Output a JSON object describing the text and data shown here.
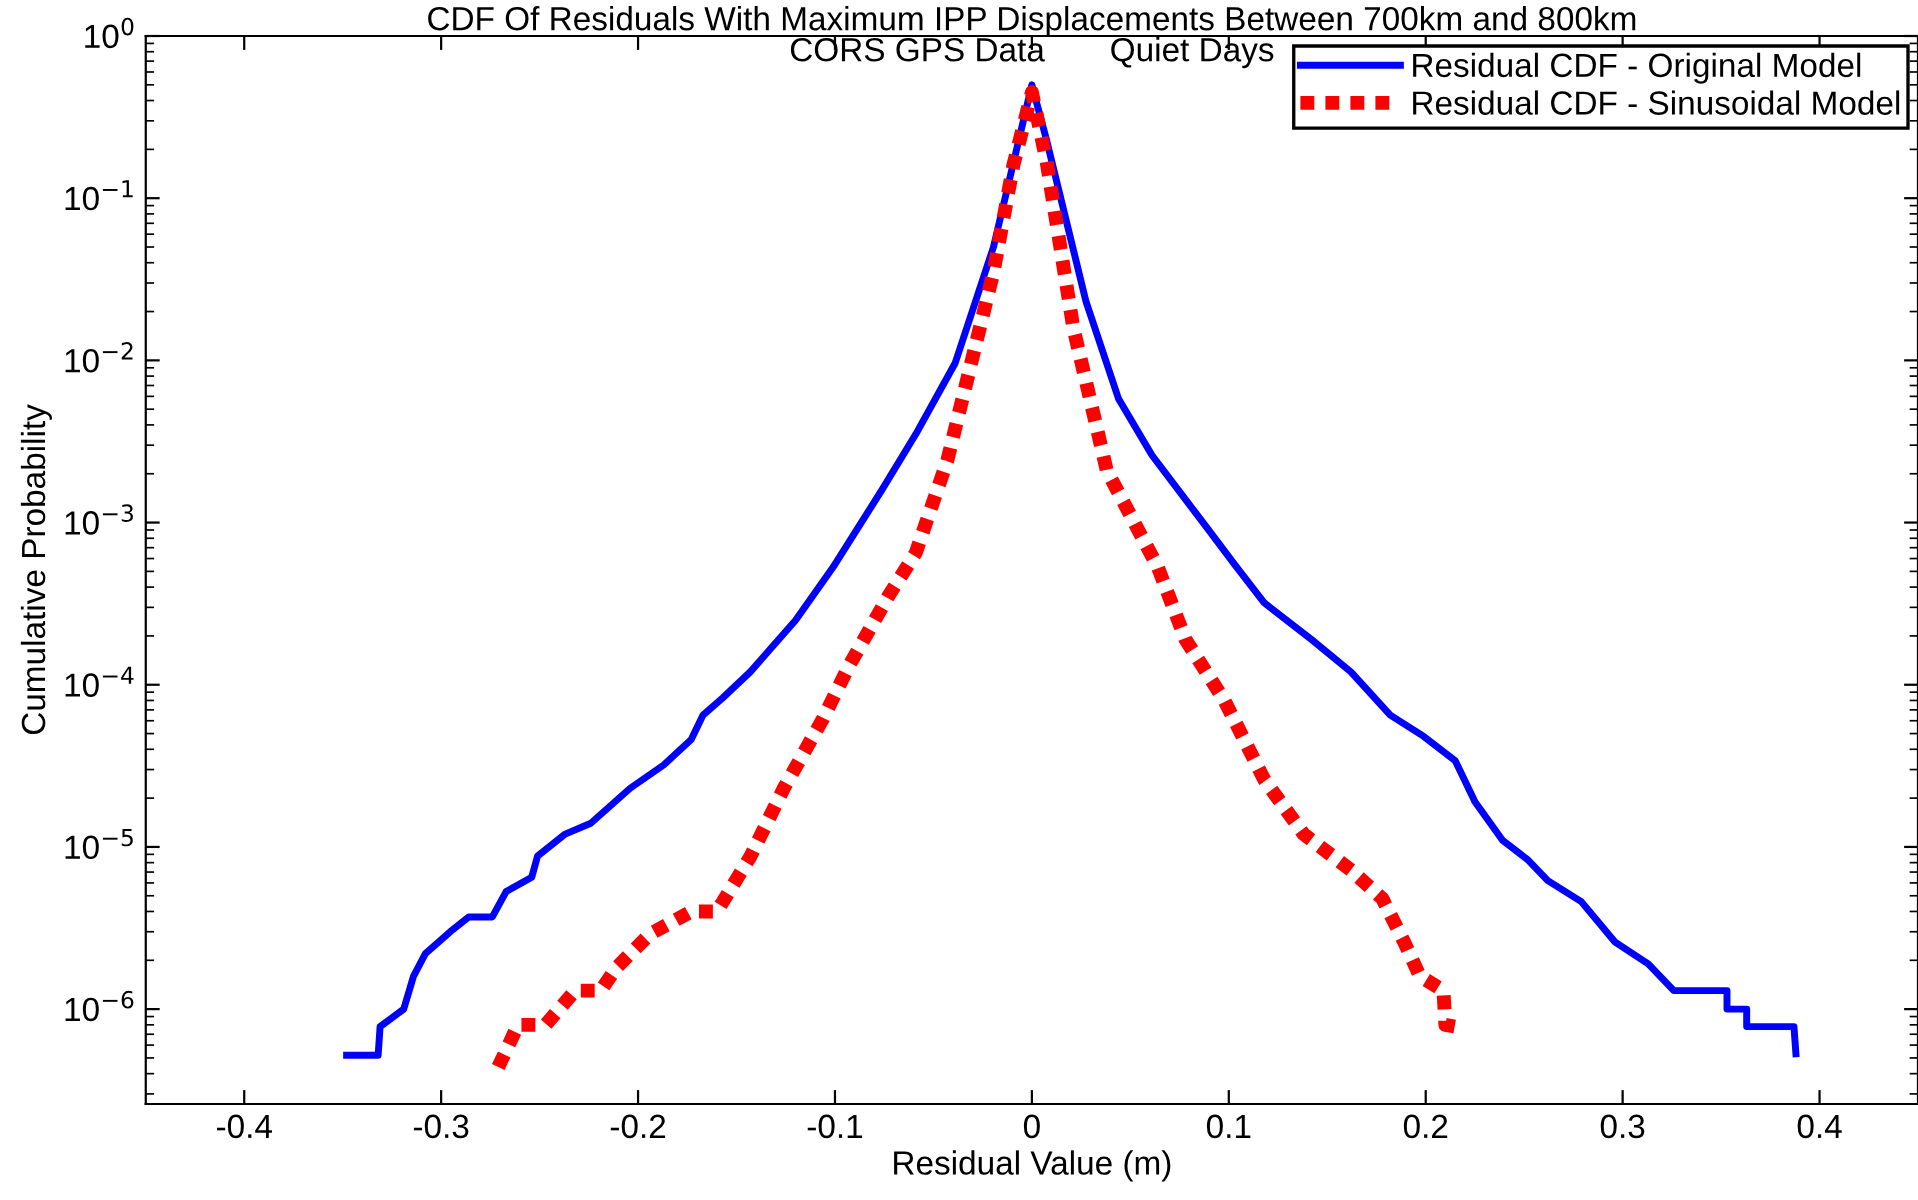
{
  "chart_data": {
    "type": "line",
    "title": "CDF Of Residuals With Maximum IPP Displacements Between 700km and 800km",
    "subtitle": "CORS GPS Data       Quiet Days",
    "xlabel": "Residual Value (m)",
    "ylabel": "Cumulative Probability",
    "log": "y",
    "xlim": [
      -0.45,
      0.45
    ],
    "ylim": [
      2.6e-07,
      1
    ],
    "xticks": [
      -0.4,
      -0.3,
      -0.2,
      -0.1,
      0,
      0.1,
      0.2,
      0.3,
      0.4
    ],
    "yticks": [
      {
        "value": 1e-06,
        "label": "10$^{−6}$"
      },
      {
        "value": 1e-05,
        "label": "10$^{−5}$"
      },
      {
        "value": 0.0001,
        "label": "10$^{−4}$"
      },
      {
        "value": 0.001,
        "label": "10$^{−3}$"
      },
      {
        "value": 0.01,
        "label": "10$^{−2}$"
      },
      {
        "value": 0.1,
        "label": "10$^{−1}$"
      },
      {
        "value": 1,
        "label": "10$^{0}$"
      }
    ],
    "grid": false,
    "legend": "top right",
    "series": [
      {
        "name": "Residual CDF - Original Model",
        "color": "#0000ff",
        "line_style": "solid",
        "x": [
          -0.348,
          -0.332,
          -0.331,
          -0.319,
          -0.314,
          -0.308,
          -0.294,
          -0.286,
          -0.274,
          -0.267,
          -0.254,
          -0.251,
          -0.237,
          -0.224,
          -0.204,
          -0.187,
          -0.173,
          -0.167,
          -0.157,
          -0.143,
          -0.12,
          -0.101,
          -0.076,
          -0.059,
          -0.039,
          -0.0195,
          0,
          0.0074,
          0.0275,
          0.044,
          0.061,
          0.088,
          0.103,
          0.118,
          0.142,
          0.162,
          0.182,
          0.199,
          0.215,
          0.225,
          0.239,
          0.252,
          0.262,
          0.279,
          0.296,
          0.313,
          0.326,
          0.353,
          0.353,
          0.363,
          0.363,
          0.387,
          0.388
        ],
        "values": [
          5.2e-07,
          5.2e-07,
          7.8e-07,
          1e-06,
          1.6e-06,
          2.2e-06,
          3.1e-06,
          3.7e-06,
          3.7e-06,
          5.3e-06,
          6.5e-06,
          8.8e-06,
          1.2e-05,
          1.4e-05,
          2.3e-05,
          3.2e-05,
          4.6e-05,
          6.5e-05,
          8.3e-05,
          0.00012,
          0.00025,
          0.00053,
          0.0016,
          0.0035,
          0.0096,
          0.05,
          0.5,
          0.23,
          0.023,
          0.0058,
          0.0026,
          0.00096,
          0.00055,
          0.00032,
          0.00019,
          0.00012,
          6.5e-05,
          4.8e-05,
          3.4e-05,
          1.9e-05,
          1.1e-05,
          8.3e-06,
          6.2e-06,
          4.6e-06,
          2.6e-06,
          1.9e-06,
          1.3e-06,
          1.3e-06,
          1e-06,
          1e-06,
          7.8e-07,
          7.8e-07,
          5.3e-07
        ]
      },
      {
        "name": "Residual CDF - Sinusoidal Model",
        "color": "#ff0000",
        "line_style": "dotted",
        "x": [
          -0.271,
          -0.266,
          -0.261,
          -0.247,
          -0.232,
          -0.219,
          -0.211,
          -0.194,
          -0.173,
          -0.16,
          -0.143,
          -0.126,
          -0.106,
          -0.093,
          -0.073,
          -0.059,
          -0.043,
          -0.0195,
          -0.0094,
          0,
          0.0074,
          0.021,
          0.038,
          0.064,
          0.078,
          0.098,
          0.118,
          0.138,
          0.162,
          0.178,
          0.189,
          0.197,
          0.209,
          0.21,
          0.22
        ],
        "values": [
          4.4e-07,
          5.9e-07,
          8e-07,
          8e-07,
          1.3e-06,
          1.3e-06,
          1.8e-06,
          2.9e-06,
          4e-06,
          4e-06,
          8.7e-06,
          2.3e-05,
          6.2e-05,
          0.00013,
          0.00035,
          0.00065,
          0.0024,
          0.035,
          0.16,
          0.45,
          0.17,
          0.016,
          0.0021,
          0.00053,
          0.00019,
          7.9e-05,
          2.6e-05,
          1.2e-05,
          7.2e-06,
          4.8e-06,
          2.6e-06,
          1.6e-06,
          1.3e-06,
          8e-07,
          7.6e-07
        ]
      }
    ]
  }
}
